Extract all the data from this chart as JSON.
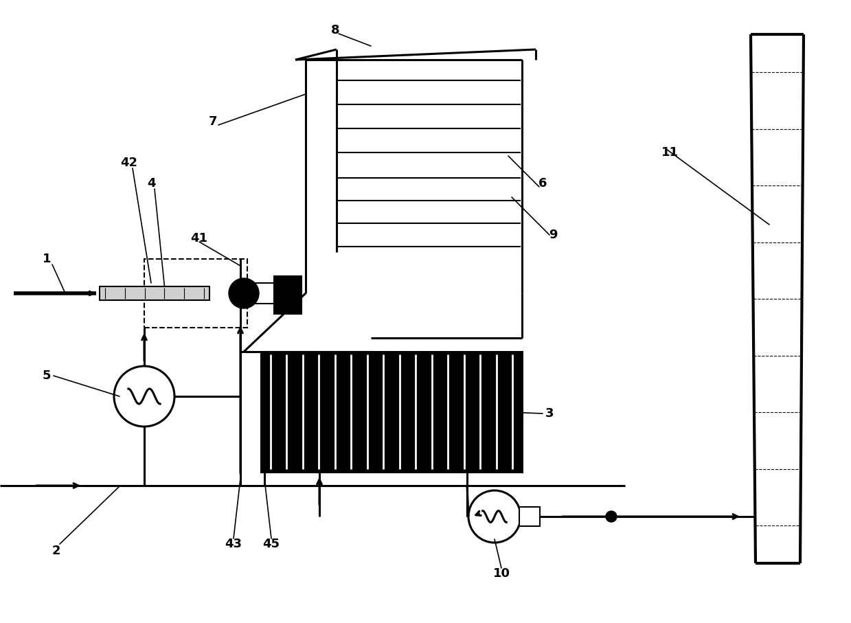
{
  "bg_color": "#ffffff",
  "line_color": "#000000",
  "lw": 1.5,
  "lw2": 2.2,
  "lw3": 3.0,
  "label_fontsize": 13,
  "label_fontweight": "bold"
}
